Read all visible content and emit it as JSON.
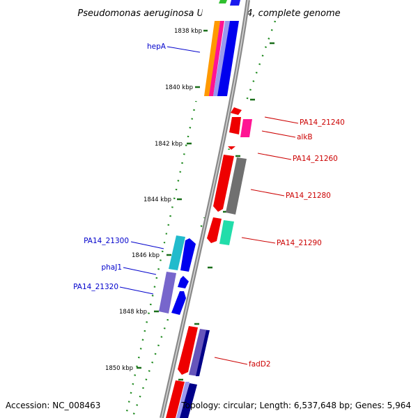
{
  "title": "Pseudomonas aeruginosa UCBPP-PA14, complete genome",
  "footer": {
    "accession": "Accession: NC_008463",
    "summary": "Topology: circular; Length: 6,537,648 bp; Genes: 5,964"
  },
  "colors": {
    "backbone": "#808080",
    "label_forward": "#0000cc",
    "label_reverse": "#cc0000",
    "tick": "#006400"
  },
  "ticks": [
    {
      "label": "1838 kbp",
      "kbp": 1838
    },
    {
      "label": "1840 kbp",
      "kbp": 1840
    },
    {
      "label": "1842 kbp",
      "kbp": 1842
    },
    {
      "label": "1844 kbp",
      "kbp": 1844
    },
    {
      "label": "1846 kbp",
      "kbp": 1846
    },
    {
      "label": "1848 kbp",
      "kbp": 1848
    },
    {
      "label": "1850 kbp",
      "kbp": 1850
    }
  ],
  "gene_labels": [
    {
      "name": "hepA",
      "strand": "forward"
    },
    {
      "name": "PA14_21240",
      "strand": "reverse"
    },
    {
      "name": "alkB",
      "strand": "reverse"
    },
    {
      "name": "PA14_21260",
      "strand": "reverse"
    },
    {
      "name": "PA14_21280",
      "strand": "reverse"
    },
    {
      "name": "PA14_21290",
      "strand": "reverse"
    },
    {
      "name": "PA14_21300",
      "strand": "forward"
    },
    {
      "name": "phaJ1",
      "strand": "forward"
    },
    {
      "name": "PA14_21320",
      "strand": "forward"
    },
    {
      "name": "fadD2",
      "strand": "reverse"
    }
  ]
}
